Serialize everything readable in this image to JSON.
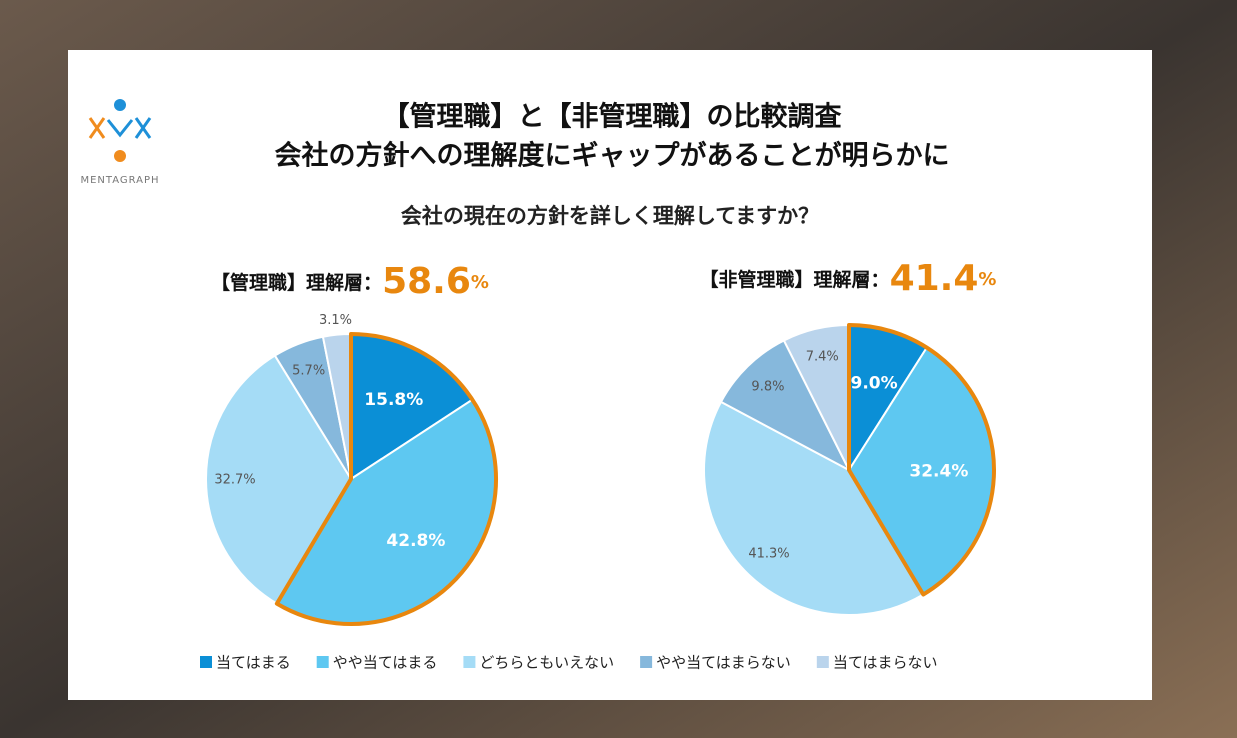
{
  "logo": "MENTAGRAPH",
  "title": [
    "【管理職】と【非管理職】の比較調査",
    "会社の方針への理解度にギャップがあることが明らかに"
  ],
  "question": "会社の現在の方針を詳しく理解してますか？",
  "chart_data": [
    {
      "type": "pie",
      "title": "【管理職】理解層：",
      "total": 58.6,
      "total_unit": "%",
      "categories": [
        "当てはまる",
        "やや当てはまる",
        "どちらともいえない",
        "やや当てはまらない",
        "当てはまらない"
      ],
      "values": [
        15.8,
        42.8,
        32.7,
        5.7,
        3.1
      ],
      "value_labels": [
        "15.8%",
        "42.8%",
        "32.7%",
        "5.7%",
        "3.1%"
      ],
      "colors": [
        "#0b8fd6",
        "#5ec8f1",
        "#a5dcf6",
        "#86b8dc",
        "#bad4ec"
      ],
      "outlined": [
        0,
        1
      ],
      "outline_color": "#e8870e"
    },
    {
      "type": "pie",
      "title": "【非管理職】理解層：",
      "total": 41.4,
      "total_unit": "%",
      "categories": [
        "当てはまる",
        "やや当てはまる",
        "どちらともいえない",
        "やや当てはまらない",
        "当てはまらない"
      ],
      "values": [
        9.0,
        32.4,
        41.3,
        9.8,
        7.4
      ],
      "value_labels": [
        "9.0%",
        "32.4%",
        "41.3%",
        "9.8%",
        "7.4%"
      ],
      "colors": [
        "#0b8fd6",
        "#5ec8f1",
        "#a5dcf6",
        "#86b8dc",
        "#bad4ec"
      ],
      "outlined": [
        0,
        1
      ],
      "outline_color": "#e8870e"
    }
  ]
}
